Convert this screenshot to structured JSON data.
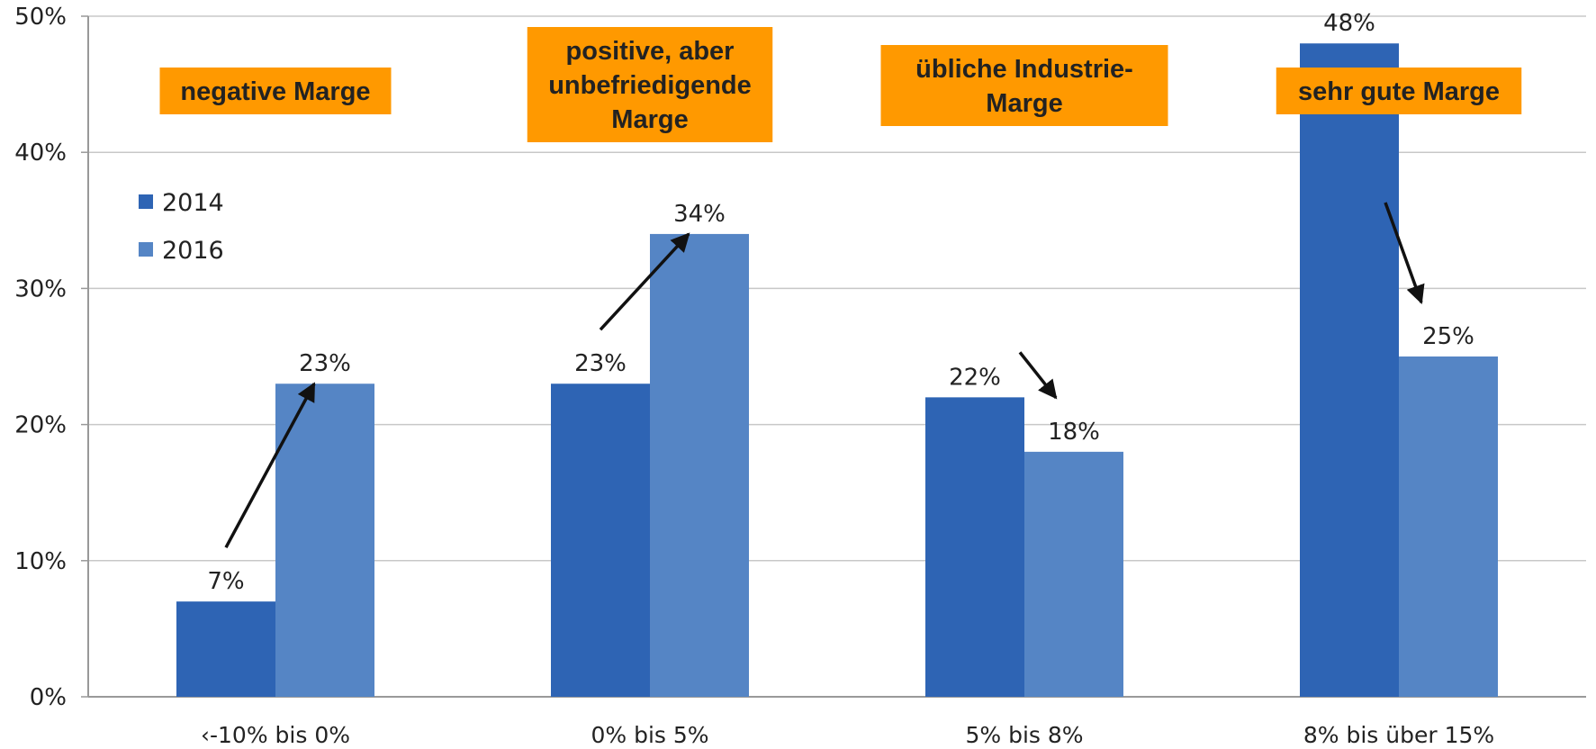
{
  "chart_data": {
    "type": "bar",
    "title": "",
    "xlabel": "",
    "ylabel": "",
    "categories": [
      "‹-10% bis 0%",
      "0% bis 5%",
      "5% bis 8%",
      "8% bis über 15%"
    ],
    "series": [
      {
        "name": "2014",
        "values": [
          7,
          23,
          22,
          48
        ],
        "color": "#2e64b4"
      },
      {
        "name": "2016",
        "values": [
          23,
          34,
          18,
          25
        ],
        "color": "#5585c5"
      }
    ],
    "ylim": [
      0,
      50
    ],
    "yticks": [
      0,
      10,
      20,
      30,
      40,
      50
    ],
    "ytick_suffix": "%",
    "grid": true,
    "legend_position": "top-left",
    "annotations": [
      {
        "category": 0,
        "lines": [
          "negative Marge"
        ]
      },
      {
        "category": 1,
        "lines": [
          "positive, aber",
          "unbefriedigende",
          "Marge"
        ]
      },
      {
        "category": 2,
        "lines": [
          "übliche Industrie-",
          "Marge"
        ]
      },
      {
        "category": 3,
        "lines": [
          "sehr gute Marge"
        ]
      }
    ],
    "annotation_color": "#ff9900",
    "trend_arrows": [
      {
        "category": 0,
        "direction": "up"
      },
      {
        "category": 1,
        "direction": "up"
      },
      {
        "category": 2,
        "direction": "down"
      },
      {
        "category": 3,
        "direction": "down"
      }
    ]
  }
}
